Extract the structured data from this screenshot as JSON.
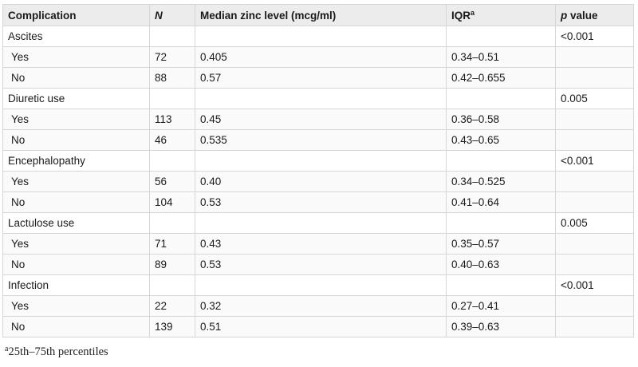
{
  "table": {
    "headers": {
      "complication": "Complication",
      "n": "N",
      "median": "Median zinc level (mcg/ml)",
      "iqr": "IQR",
      "iqr_sup": "a",
      "p_italic": "p",
      "p_rest": " value"
    },
    "groups": [
      {
        "name": "Ascites",
        "p": "<0.001",
        "rows": [
          {
            "label": "Yes",
            "n": "72",
            "median": "0.405",
            "iqr": "0.34–0.51"
          },
          {
            "label": "No",
            "n": "88",
            "median": "0.57",
            "iqr": "0.42–0.655"
          }
        ]
      },
      {
        "name": "Diuretic use",
        "p": "0.005",
        "rows": [
          {
            "label": "Yes",
            "n": "113",
            "median": "0.45",
            "iqr": "0.36–0.58"
          },
          {
            "label": "No",
            "n": "46",
            "median": "0.535",
            "iqr": "0.43–0.65"
          }
        ]
      },
      {
        "name": "Encephalopathy",
        "p": "<0.001",
        "rows": [
          {
            "label": "Yes",
            "n": "56",
            "median": "0.40",
            "iqr": "0.34–0.525"
          },
          {
            "label": "No",
            "n": "104",
            "median": "0.53",
            "iqr": "0.41–0.64"
          }
        ]
      },
      {
        "name": "Lactulose use",
        "p": "0.005",
        "rows": [
          {
            "label": "Yes",
            "n": "71",
            "median": "0.43",
            "iqr": "0.35–0.57"
          },
          {
            "label": "No",
            "n": "89",
            "median": "0.53",
            "iqr": "0.40–0.63"
          }
        ]
      },
      {
        "name": "Infection",
        "p": "<0.001",
        "rows": [
          {
            "label": "Yes",
            "n": "22",
            "median": "0.32",
            "iqr": "0.27–0.41"
          },
          {
            "label": "No",
            "n": "139",
            "median": "0.51",
            "iqr": "0.39–0.63"
          }
        ]
      }
    ]
  },
  "footnote": {
    "marker": "a",
    "text": "25th–75th percentiles"
  }
}
